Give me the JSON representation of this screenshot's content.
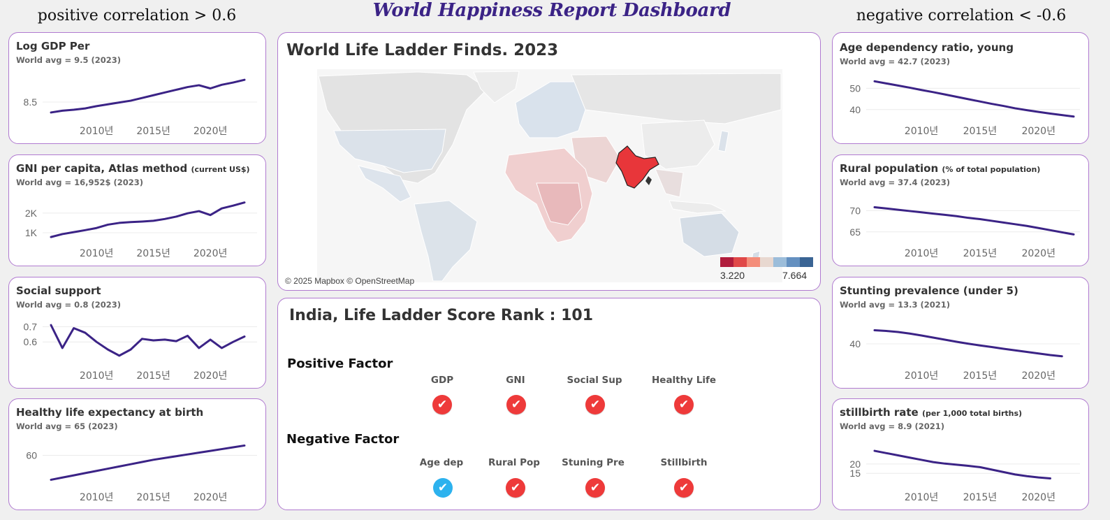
{
  "header": {
    "title": "World Happiness Report Dashboard",
    "left_heading": "positive correlation > 0.6",
    "right_heading": "negative correlation < -0.6"
  },
  "left_cards": [
    {
      "title": "Log GDP Per",
      "title_suffix": "",
      "avg": "World avg = 9.5 (2023)",
      "yticks": [
        "8.5"
      ],
      "xticks": [
        "2010년",
        "2015년",
        "2020년"
      ]
    },
    {
      "title": "GNI per capita, Atlas method",
      "title_suffix": "(current US$)",
      "avg": "World avg = 16,952$ (2023)",
      "yticks": [
        "2K",
        "1K"
      ],
      "xticks": [
        "2010년",
        "2015년",
        "2020년"
      ]
    },
    {
      "title": "Social support",
      "title_suffix": "",
      "avg": "World avg = 0.8 (2023)",
      "yticks": [
        "0.7",
        "0.6"
      ],
      "xticks": [
        "2010년",
        "2015년",
        "2020년"
      ]
    },
    {
      "title": "Healthy life expectancy at birth",
      "title_suffix": "",
      "avg": "World avg = 65 (2023)",
      "yticks": [
        "60"
      ],
      "xticks": [
        "2010년",
        "2015년",
        "2020년"
      ]
    }
  ],
  "right_cards": [
    {
      "title": "Age dependency ratio, young",
      "title_suffix": "",
      "avg": "World avg = 42.7 (2023)",
      "yticks": [
        "50",
        "40"
      ],
      "xticks": [
        "2010년",
        "2015년",
        "2020년"
      ]
    },
    {
      "title": "Rural population",
      "title_suffix": "(% of total population)",
      "avg": "World avg = 37.4 (2023)",
      "yticks": [
        "70",
        "65"
      ],
      "xticks": [
        "2010년",
        "2015년",
        "2020년"
      ]
    },
    {
      "title": "Stunting prevalence (under 5)",
      "title_suffix": "",
      "avg": "World avg = 13.3 (2021)",
      "yticks": [
        "40"
      ],
      "xticks": [
        "2010년",
        "2015년",
        "2020년"
      ]
    },
    {
      "title": "stillbirth rate",
      "title_suffix": "(per 1,000 total births)",
      "avg": "World avg = 8.9 (2021)",
      "yticks": [
        "20",
        "15"
      ],
      "xticks": [
        "2010년",
        "2015년",
        "2020년"
      ]
    }
  ],
  "map": {
    "title": "World Life Ladder Finds. 2023",
    "attribution": "© 2025 Mapbox © OpenStreetMap",
    "legend_min": "3.220",
    "legend_max": "7.664",
    "legend_colors": [
      "#b01c3c",
      "#e04848",
      "#f48d7a",
      "#e8d8d0",
      "#9cbdda",
      "#6490c0",
      "#3a6494"
    ],
    "highlight_color": "#e8363a"
  },
  "rank": {
    "title": "India, Life Ladder Score Rank : 101",
    "positive_heading": "Positive Factor",
    "negative_heading": "Negative Factor",
    "positive_factors": [
      {
        "label": "GDP",
        "status": "red"
      },
      {
        "label": "GNI",
        "status": "red"
      },
      {
        "label": "Social Sup",
        "status": "red"
      },
      {
        "label": "Healthy Life",
        "status": "red"
      }
    ],
    "negative_factors": [
      {
        "label": "Age dep",
        "status": "blue"
      },
      {
        "label": "Rural Pop",
        "status": "red"
      },
      {
        "label": "Stuning Pre",
        "status": "red"
      },
      {
        "label": "Stillbirth",
        "status": "red"
      }
    ],
    "check_glyph": "✔"
  },
  "chart_data": [
    {
      "type": "line",
      "title": "Log GDP Per",
      "x": [
        2006,
        2007,
        2008,
        2009,
        2010,
        2011,
        2012,
        2013,
        2014,
        2015,
        2016,
        2017,
        2018,
        2019,
        2020,
        2021,
        2022,
        2023
      ],
      "y": [
        8.27,
        8.31,
        8.33,
        8.36,
        8.41,
        8.45,
        8.49,
        8.53,
        8.59,
        8.65,
        8.71,
        8.77,
        8.83,
        8.87,
        8.8,
        8.88,
        8.93,
        8.99
      ],
      "ylim": [
        8.1,
        9.1
      ]
    },
    {
      "type": "line",
      "title": "GNI per capita, Atlas method (current US$)",
      "x": [
        2006,
        2007,
        2008,
        2009,
        2010,
        2011,
        2012,
        2013,
        2014,
        2015,
        2016,
        2017,
        2018,
        2019,
        2020,
        2021,
        2022,
        2023
      ],
      "y": [
        780,
        930,
        1030,
        1130,
        1240,
        1410,
        1500,
        1540,
        1570,
        1610,
        1700,
        1820,
        1990,
        2100,
        1900,
        2240,
        2380,
        2540
      ],
      "ylim": [
        500,
        3100
      ]
    },
    {
      "type": "line",
      "title": "Social support",
      "x": [
        2006,
        2007,
        2008,
        2009,
        2010,
        2011,
        2012,
        2013,
        2014,
        2015,
        2016,
        2017,
        2018,
        2019,
        2020,
        2021,
        2022,
        2023
      ],
      "y": [
        0.71,
        0.56,
        0.69,
        0.66,
        0.6,
        0.55,
        0.51,
        0.55,
        0.62,
        0.61,
        0.615,
        0.605,
        0.64,
        0.56,
        0.615,
        0.56,
        0.6,
        0.635
      ],
      "ylim": [
        0.45,
        0.77
      ]
    },
    {
      "type": "line",
      "title": "Healthy life expectancy at birth",
      "x": [
        2006,
        2007,
        2008,
        2009,
        2010,
        2011,
        2012,
        2013,
        2014,
        2015,
        2016,
        2017,
        2018,
        2019,
        2020,
        2021,
        2022,
        2023
      ],
      "y": [
        54.5,
        55.0,
        55.5,
        56.0,
        56.5,
        57.0,
        57.5,
        58.0,
        58.5,
        59.0,
        59.4,
        59.8,
        60.2,
        60.6,
        61.0,
        61.4,
        61.8,
        62.2
      ],
      "ylim": [
        53,
        64
      ]
    },
    {
      "type": "line",
      "title": "Age dependency ratio, young",
      "x": [
        2006,
        2007,
        2008,
        2009,
        2010,
        2011,
        2012,
        2013,
        2014,
        2015,
        2016,
        2017,
        2018,
        2019,
        2020,
        2021,
        2022,
        2023
      ],
      "y": [
        53.3,
        52.3,
        51.3,
        50.3,
        49.2,
        48.2,
        47.1,
        46.0,
        44.9,
        43.8,
        42.7,
        41.7,
        40.6,
        39.7,
        38.9,
        38.1,
        37.4,
        36.7
      ],
      "ylim": [
        34,
        58
      ]
    },
    {
      "type": "line",
      "title": "Rural population (% of total population)",
      "x": [
        2006,
        2007,
        2008,
        2009,
        2010,
        2011,
        2012,
        2013,
        2014,
        2015,
        2016,
        2017,
        2018,
        2019,
        2020,
        2021,
        2022,
        2023
      ],
      "y": [
        70.8,
        70.5,
        70.2,
        69.9,
        69.6,
        69.3,
        69.0,
        68.7,
        68.3,
        68.0,
        67.6,
        67.2,
        66.8,
        66.4,
        65.9,
        65.4,
        64.9,
        64.4
      ],
      "ylim": [
        62,
        74
      ]
    },
    {
      "type": "line",
      "title": "Stunting prevalence (under 5)",
      "x": [
        2006,
        2007,
        2008,
        2009,
        2010,
        2011,
        2012,
        2013,
        2014,
        2015,
        2016,
        2017,
        2018,
        2019,
        2020,
        2021,
        2022
      ],
      "y": [
        47.8,
        47.4,
        46.8,
        45.9,
        44.8,
        43.6,
        42.4,
        41.2,
        40.1,
        39.1,
        38.2,
        37.2,
        36.3,
        35.4,
        34.5,
        33.6,
        32.9
      ],
      "ylim": [
        28,
        56
      ]
    },
    {
      "type": "line",
      "title": "stillbirth rate (per 1,000 total births)",
      "x": [
        2006,
        2007,
        2008,
        2009,
        2010,
        2011,
        2012,
        2013,
        2014,
        2015,
        2016,
        2017,
        2018,
        2019,
        2020,
        2021
      ],
      "y": [
        27.0,
        25.8,
        24.6,
        23.4,
        22.2,
        21.0,
        20.2,
        19.6,
        19.0,
        18.3,
        17.0,
        15.7,
        14.4,
        13.5,
        12.8,
        12.3
      ],
      "ylim": [
        8,
        33
      ]
    }
  ]
}
